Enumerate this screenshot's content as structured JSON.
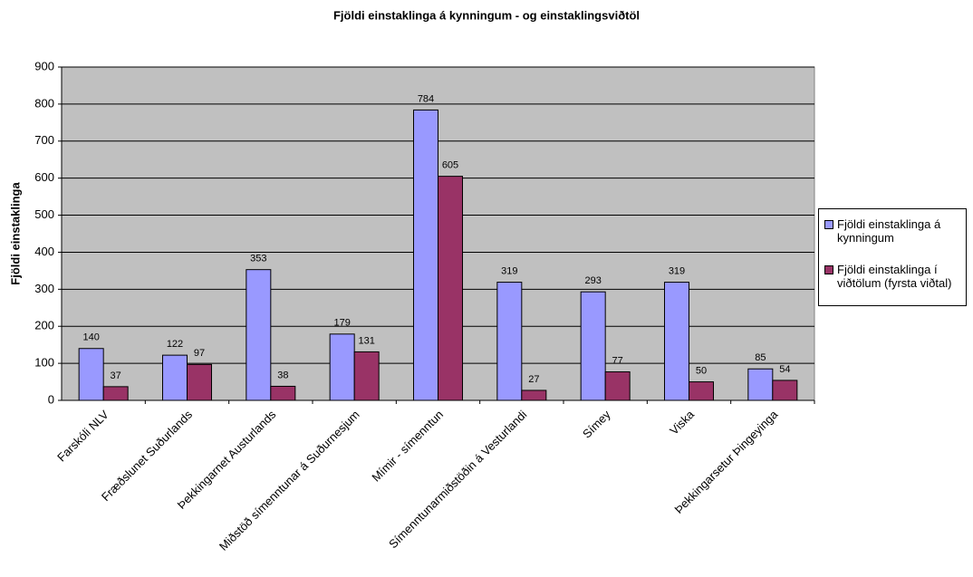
{
  "chart_data": {
    "type": "bar",
    "title": "Fjöldi einstaklinga á kynningum - og einstaklingsviðtöl",
    "y_label": "Fjöldi einstaklinga",
    "categories": [
      "Farskóli NLV",
      "Fræðslunet Suðurlands",
      "Þekkingarnet Austurlands",
      "Miðstöð símenntunar á Suðurnesjum",
      "Mímir - símenntun",
      "Símenntunarmiðstöðin á Vesturlandi",
      "Símey",
      "Viska",
      "Þekkingarsetur Þingeyinga"
    ],
    "series": [
      {
        "name": "Fjöldi einstaklinga á kynningum",
        "color": "#9999ff",
        "values": [
          140,
          122,
          353,
          179,
          784,
          319,
          293,
          319,
          85
        ]
      },
      {
        "name": "Fjöldi einstaklinga í viðtölum (fyrsta viðtal)",
        "color": "#993366",
        "values": [
          37,
          97,
          38,
          131,
          605,
          27,
          77,
          50,
          54
        ]
      }
    ],
    "ylim": [
      0,
      900
    ],
    "yticks": [
      0,
      100,
      200,
      300,
      400,
      500,
      600,
      700,
      800,
      900
    ],
    "grid": true,
    "legend": "right"
  }
}
